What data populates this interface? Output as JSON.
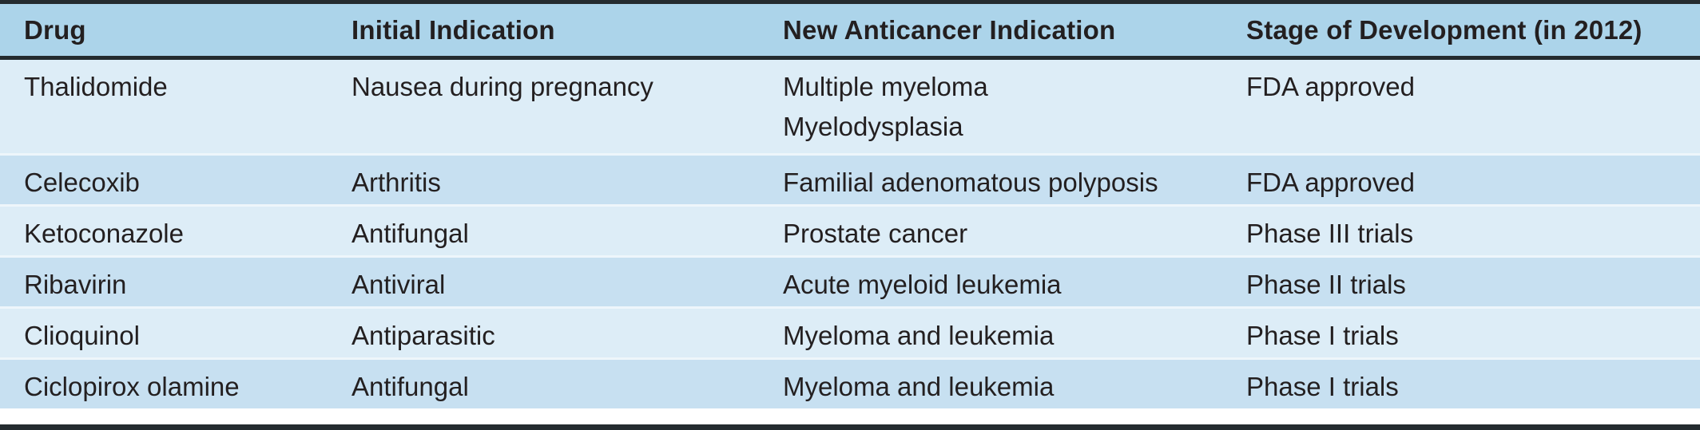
{
  "table": {
    "columns": [
      "Drug",
      "Initial Indication",
      "New Anticancer Indication",
      "Stage of Development (in 2012)"
    ],
    "rows": [
      {
        "drug": "Thalidomide",
        "initial_indication": "Nausea during pregnancy",
        "new_anticancer_indication_line1": "Multiple myeloma",
        "new_anticancer_indication_line2": "Myelodysplasia",
        "stage_of_development": "FDA approved"
      },
      {
        "drug": "Celecoxib",
        "initial_indication": "Arthritis",
        "new_anticancer_indication_line1": "Familial adenomatous polyposis",
        "stage_of_development": "FDA approved"
      },
      {
        "drug": "Ketoconazole",
        "initial_indication": "Antifungal",
        "new_anticancer_indication_line1": "Prostate cancer",
        "stage_of_development": "Phase III trials"
      },
      {
        "drug": "Ribavirin",
        "initial_indication": "Antiviral",
        "new_anticancer_indication_line1": "Acute myeloid leukemia",
        "stage_of_development": "Phase II trials"
      },
      {
        "drug": "Clioquinol",
        "initial_indication": "Antiparasitic",
        "new_anticancer_indication_line1": "Myeloma and leukemia",
        "stage_of_development": "Phase I trials"
      },
      {
        "drug": "Ciclopirox olamine",
        "initial_indication": "Antifungal",
        "new_anticancer_indication_line1": "Myeloma and leukemia",
        "stage_of_development": "Phase I trials"
      }
    ],
    "colors": {
      "header_background": "#acd4ea",
      "row_light": "#ddedf7",
      "row_medium": "#c7e0f1",
      "border_dark": "#242b2f",
      "row_separator": "#eef6fb",
      "text": "#231f20"
    }
  }
}
